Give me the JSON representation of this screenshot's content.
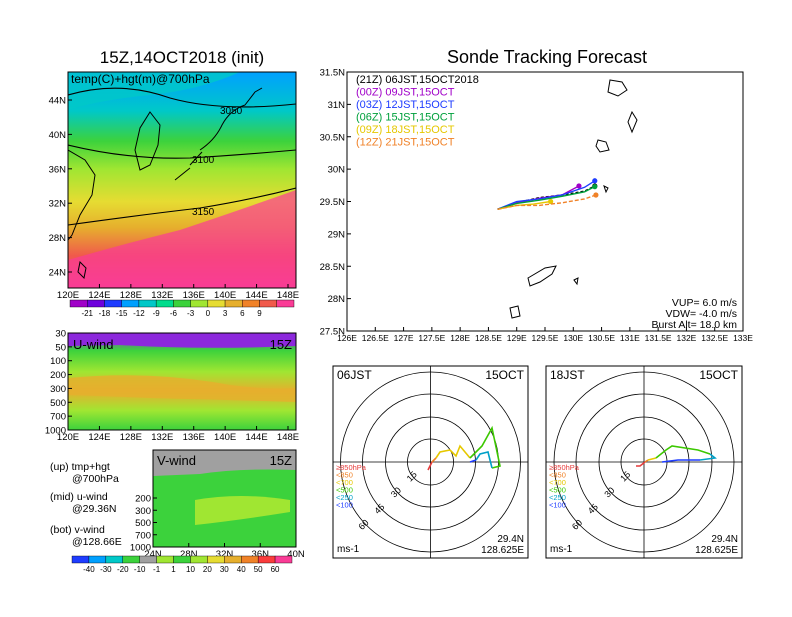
{
  "map": {
    "title": "15Z,14OCT2018 (init)",
    "label": "temp(C)+hgt(m)@700hPa",
    "yticks": [
      "44N",
      "40N",
      "36N",
      "32N",
      "28N",
      "24N"
    ],
    "xticks": [
      "120E",
      "124E",
      "128E",
      "132E",
      "136E",
      "140E",
      "144E",
      "148E"
    ],
    "contours": [
      "3050",
      "3100",
      "3150"
    ],
    "colorbar_ticks": [
      "-21",
      "-18",
      "-15",
      "-12",
      "-9",
      "-6",
      "-3",
      "0",
      "3",
      "6",
      "9"
    ],
    "colorbar_colors": [
      "#a000c8",
      "#6e00dc",
      "#1e3cff",
      "#00a0ff",
      "#00c8c8",
      "#00dc8c",
      "#3cd23c",
      "#a0e632",
      "#e6dc32",
      "#e6af2d",
      "#f08228",
      "#f05a4b",
      "#fa3c96"
    ]
  },
  "uwind": {
    "label": "U-wind",
    "time": "15Z",
    "yticks": [
      "30",
      "50",
      "100",
      "200",
      "300",
      "500",
      "700",
      "1000"
    ],
    "xticks": [
      "120E",
      "124E",
      "128E",
      "132E",
      "136E",
      "140E",
      "144E",
      "148E"
    ]
  },
  "vwind": {
    "label": "V-wind",
    "time": "15Z",
    "yticks": [
      "200",
      "300",
      "500",
      "700",
      "1000"
    ],
    "xticks": [
      "24N",
      "28N",
      "32N",
      "36N",
      "40N"
    ]
  },
  "legend_notes": {
    "up_1": "(up) tmp+hgt",
    "up_2": "@700hPa",
    "mid_1": "(mid) u-wind",
    "mid_2": "@29.36N",
    "bot_1": "(bot) v-wind",
    "bot_2": "@128.66E"
  },
  "wind_colorbar": {
    "ticks": [
      "-40",
      "-30",
      "-20",
      "-10",
      "-1",
      "1",
      "10",
      "20",
      "30",
      "40",
      "50",
      "60"
    ],
    "colors": [
      "#1e3cff",
      "#00a0ff",
      "#00c8c8",
      "#3cd23c",
      "#a0a0a0",
      "#a0e632",
      "#3cd23c",
      "#a0e632",
      "#e6dc32",
      "#e6af2d",
      "#f08228",
      "#fa3c3c",
      "#fa3c96"
    ]
  },
  "track": {
    "title": "Sonde Tracking Forecast",
    "legend": [
      {
        "text": "(21Z) 06JST,15OCT2018",
        "color": "#000000"
      },
      {
        "text": "(00Z) 09JST,15OCT",
        "color": "#a000c8"
      },
      {
        "text": "(03Z) 12JST,15OCT",
        "color": "#1e3cff"
      },
      {
        "text": "(06Z) 15JST,15OCT",
        "color": "#00a03c"
      },
      {
        "text": "(09Z) 18JST,15OCT",
        "color": "#e6c800"
      },
      {
        "text": "(12Z) 21JST,15OCT",
        "color": "#f08228"
      }
    ],
    "yticks": [
      "31.5N",
      "31N",
      "30.5N",
      "30N",
      "29.5N",
      "29N",
      "28.5N",
      "28N",
      "27.5N"
    ],
    "xticks": [
      "126E",
      "126.5E",
      "127E",
      "127.5E",
      "128E",
      "128.5E",
      "129E",
      "129.5E",
      "130E",
      "130.5E",
      "131E",
      "131.5E",
      "132E",
      "132.5E",
      "133E"
    ],
    "vup": "VUP= 6.0 m/s",
    "vdw": "VDW= -4.0 m/s",
    "burst": "Burst Alt= 18.0 km"
  },
  "chart_data": [
    {
      "type": "line",
      "title": "Sonde Tracking Forecast",
      "xlim": [
        126,
        133
      ],
      "ylim": [
        27.5,
        31.5
      ],
      "series": [
        {
          "name": "(21Z) 06JST,15OCT2018",
          "color": "#000000",
          "x": [
            128.66,
            129.0,
            129.4,
            129.8,
            130.2,
            130.38
          ],
          "y": [
            29.38,
            29.48,
            29.56,
            29.6,
            29.66,
            29.74
          ]
        },
        {
          "name": "(00Z) 09JST,15OCT",
          "color": "#a000c8",
          "x": [
            128.66,
            129.0,
            129.4,
            129.8,
            130.1
          ],
          "y": [
            29.38,
            29.48,
            29.55,
            29.6,
            29.74
          ]
        },
        {
          "name": "(03Z) 12JST,15OCT",
          "color": "#1e3cff",
          "x": [
            128.66,
            129.0,
            129.4,
            129.8,
            130.2,
            130.38
          ],
          "y": [
            29.38,
            29.5,
            29.54,
            29.6,
            29.72,
            29.82
          ]
        },
        {
          "name": "(06Z) 15JST,15OCT",
          "color": "#00a03c",
          "x": [
            128.66,
            129.0,
            129.4,
            129.8,
            130.2,
            130.38
          ],
          "y": [
            29.38,
            29.47,
            29.52,
            29.58,
            29.65,
            29.73
          ]
        },
        {
          "name": "(09Z) 18JST,15OCT",
          "color": "#e6c800",
          "x": [
            128.66,
            129.0,
            129.3,
            129.6
          ],
          "y": [
            29.38,
            29.44,
            29.46,
            29.5
          ]
        },
        {
          "name": "(12Z) 21JST,15OCT",
          "color": "#f08228",
          "x": [
            128.66,
            129.0,
            129.4,
            129.8,
            130.2,
            130.4
          ],
          "y": [
            29.38,
            29.44,
            29.44,
            29.48,
            29.54,
            29.6
          ]
        }
      ]
    },
    {
      "type": "line",
      "title": "hodograph 06JST 15OCT",
      "location": "29.4N 128.625E",
      "unit": "ms-1",
      "rings": [
        "15",
        "30",
        "45",
        "60"
      ],
      "levels": [
        {
          "name": "≥850hPa",
          "color": "#e63c3c"
        },
        {
          "name": "<850",
          "color": "#f08228"
        },
        {
          "name": "<700",
          "color": "#e6c800"
        },
        {
          "name": "<500",
          "color": "#3cc800"
        },
        {
          "name": "<250",
          "color": "#00a0c8"
        },
        {
          "name": "<100",
          "color": "#1e3cff"
        }
      ]
    },
    {
      "type": "line",
      "title": "hodograph 18JST 15OCT",
      "location": "29.4N 128.625E",
      "unit": "ms-1",
      "rings": [
        "15",
        "30",
        "45",
        "60"
      ]
    }
  ],
  "hodo1": {
    "time": "06JST",
    "date": "15OCT",
    "lat": "29.4N",
    "lon": "128.625E",
    "unit": "ms-1",
    "rings": [
      "15",
      "30",
      "45",
      "60"
    ],
    "levels": [
      "≥850hPa",
      "<850",
      "<700",
      "<500",
      "<250",
      "<100"
    ],
    "level_colors": [
      "#e63c3c",
      "#f08228",
      "#e6c800",
      "#3cc800",
      "#00a0c8",
      "#1e3cff"
    ]
  },
  "hodo2": {
    "time": "18JST",
    "date": "15OCT",
    "lat": "29.4N",
    "lon": "128.625E",
    "unit": "ms-1",
    "rings": [
      "15",
      "30",
      "45",
      "60"
    ],
    "levels": [
      "≥850hPa",
      "<850",
      "<700",
      "<500",
      "<250",
      "<100"
    ],
    "level_colors": [
      "#e63c3c",
      "#f08228",
      "#e6c800",
      "#3cc800",
      "#00a0c8",
      "#1e3cff"
    ]
  }
}
